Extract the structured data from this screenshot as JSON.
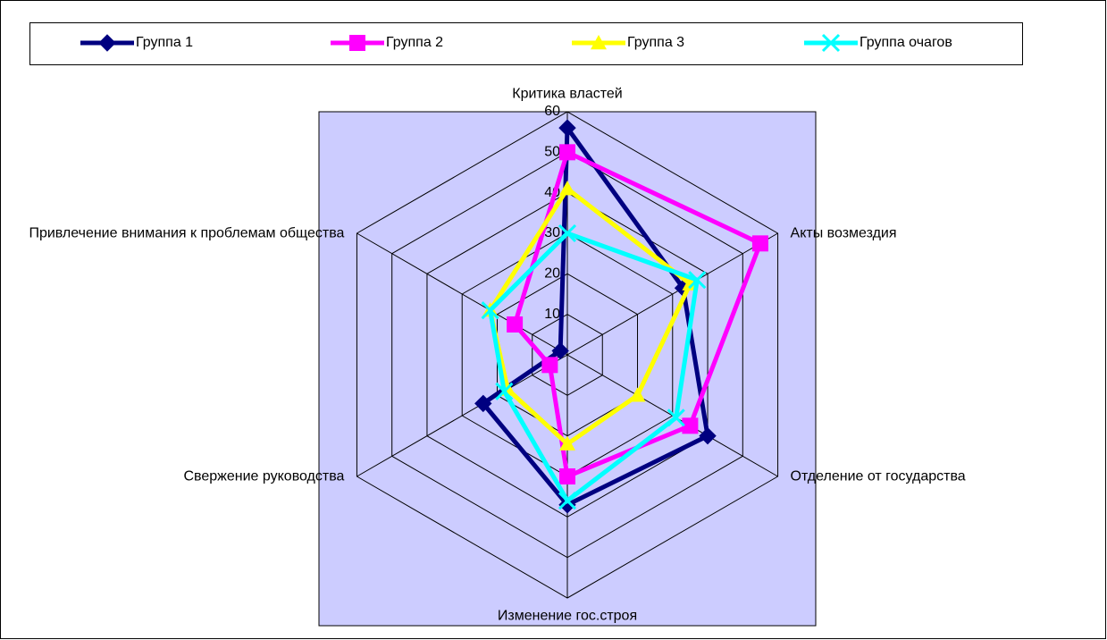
{
  "chart_data": {
    "type": "radar",
    "categories": [
      "Критика властей",
      "Акты возмездия",
      "Отделение от государства",
      "Изменение гос.строя",
      "Свержение руководства",
      "Привлечение внимания к проблемам общества"
    ],
    "series": [
      {
        "name": "Группа 1",
        "color": "#000080",
        "marker": "diamond",
        "values": [
          56,
          33,
          40,
          37,
          24,
          2
        ]
      },
      {
        "name": "Группа 2",
        "color": "#ff00ff",
        "marker": "square",
        "values": [
          50,
          55,
          35,
          30,
          5,
          15
        ]
      },
      {
        "name": "Группа 3",
        "color": "#ffff00",
        "marker": "triangle",
        "values": [
          41,
          35,
          20,
          22,
          17,
          22
        ]
      },
      {
        "name": "Группа очагов",
        "color": "#00ffff",
        "marker": "x",
        "values": [
          30,
          37,
          31,
          36,
          18,
          22
        ]
      }
    ],
    "rlim": [
      0,
      60
    ],
    "rticks": [
      0,
      10,
      20,
      30,
      40,
      50,
      60
    ],
    "grid": true,
    "legend": "top",
    "plot_background": "#ccccff"
  }
}
